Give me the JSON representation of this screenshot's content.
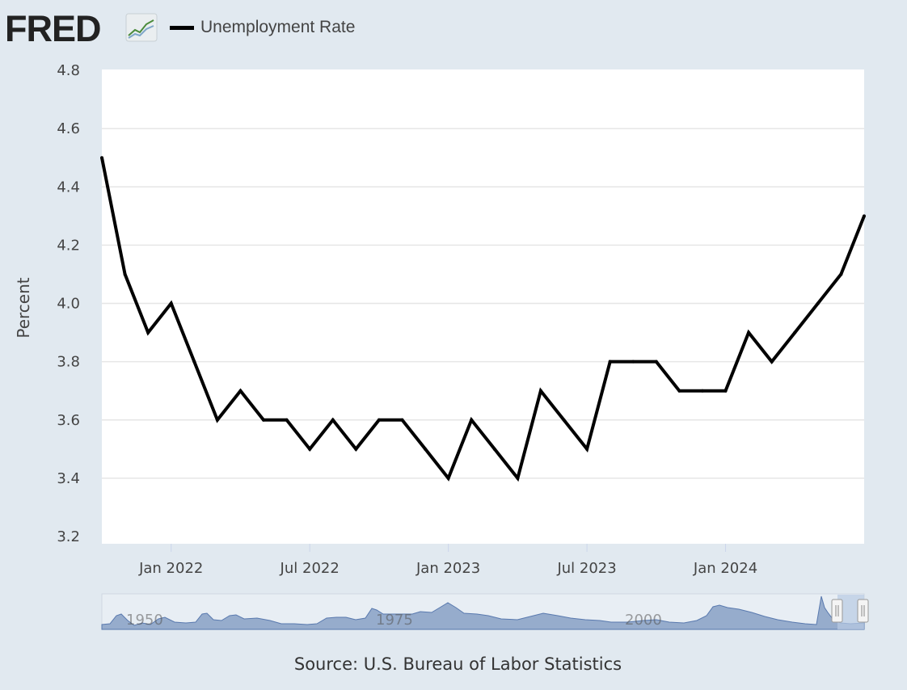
{
  "header": {
    "logo_text": "FRED",
    "legend_label": "Unemployment Rate"
  },
  "source_text": "Source: U.S. Bureau of Labor Statistics",
  "colors": {
    "background": "#e1e9f0",
    "plot_background": "#ffffff",
    "series_line": "#000000",
    "navigator_fill": "#8ea5c8",
    "navigator_line": "#4a6da7",
    "logo_text": "#222222"
  },
  "navigator": {
    "labels": [
      "1950",
      "1975",
      "2000"
    ]
  },
  "chart_data": {
    "type": "line",
    "ylabel": "Percent",
    "ylim": [
      3.2,
      4.8
    ],
    "yticks": [
      "3.2",
      "3.4",
      "3.6",
      "3.8",
      "4.0",
      "4.2",
      "4.4",
      "4.6",
      "4.8"
    ],
    "xticks": [
      "Jan 2022",
      "Jul 2022",
      "Jan 2023",
      "Jul 2023",
      "Jan 2024"
    ],
    "grid": true,
    "series": [
      {
        "name": "Unemployment Rate",
        "x": [
          "2021-10",
          "2021-11",
          "2021-12",
          "2022-01",
          "2022-02",
          "2022-03",
          "2022-04",
          "2022-05",
          "2022-06",
          "2022-07",
          "2022-08",
          "2022-09",
          "2022-10",
          "2022-11",
          "2022-12",
          "2023-01",
          "2023-02",
          "2023-03",
          "2023-04",
          "2023-05",
          "2023-06",
          "2023-07",
          "2023-08",
          "2023-09",
          "2023-10",
          "2023-11",
          "2023-12",
          "2024-01",
          "2024-02",
          "2024-03",
          "2024-04",
          "2024-05",
          "2024-06",
          "2024-07"
        ],
        "values": [
          4.5,
          4.1,
          3.9,
          4.0,
          3.8,
          3.6,
          3.7,
          3.6,
          3.6,
          3.5,
          3.6,
          3.5,
          3.6,
          3.6,
          3.5,
          3.4,
          3.6,
          3.5,
          3.4,
          3.7,
          3.6,
          3.5,
          3.8,
          3.8,
          3.8,
          3.7,
          3.7,
          3.7,
          3.9,
          3.8,
          3.9,
          4.0,
          4.1,
          4.3
        ]
      }
    ]
  }
}
